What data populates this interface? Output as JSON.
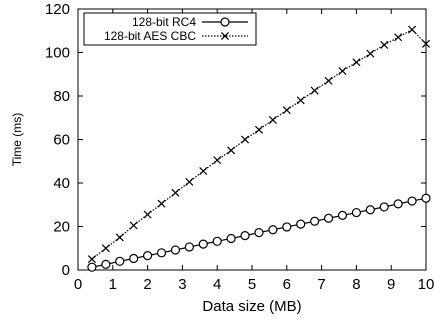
{
  "chart_data": {
    "type": "line",
    "xlabel": "Data size (MB)",
    "ylabel": "Time (ms)",
    "xlim": [
      0,
      10
    ],
    "ylim": [
      0,
      120
    ],
    "x_ticks": [
      0,
      1,
      2,
      3,
      4,
      5,
      6,
      7,
      8,
      9,
      10
    ],
    "y_ticks": [
      0,
      20,
      40,
      60,
      80,
      100,
      120
    ],
    "grid": false,
    "legend_position": "top-left",
    "series": [
      {
        "name": "128-bit RC4",
        "marker": "circle",
        "line_style": "solid",
        "color": "#000000",
        "x": [
          0.4,
          0.8,
          1.2,
          1.6,
          2.0,
          2.4,
          2.8,
          3.2,
          3.6,
          4.0,
          4.4,
          4.8,
          5.2,
          5.6,
          6.0,
          6.4,
          6.8,
          7.2,
          7.6,
          8.0,
          8.4,
          8.8,
          9.2,
          9.6,
          10.0
        ],
        "values": [
          1.3,
          2.6,
          4.0,
          5.3,
          6.6,
          7.9,
          9.2,
          10.6,
          11.9,
          13.2,
          14.5,
          15.8,
          17.2,
          18.5,
          19.8,
          21.1,
          22.4,
          23.8,
          25.1,
          26.4,
          27.7,
          29.0,
          30.4,
          31.7,
          33.0
        ]
      },
      {
        "name": "128-bit AES CBC",
        "marker": "x",
        "line_style": "dotted",
        "color": "#000000",
        "x": [
          0.4,
          0.8,
          1.2,
          1.6,
          2.0,
          2.4,
          2.8,
          3.2,
          3.6,
          4.0,
          4.4,
          4.8,
          5.2,
          5.6,
          6.0,
          6.4,
          6.8,
          7.2,
          7.6,
          8.0,
          8.4,
          8.8,
          9.2,
          9.6,
          10.0
        ],
        "values": [
          5.0,
          10.0,
          15.0,
          20.5,
          25.5,
          30.5,
          35.5,
          40.5,
          45.5,
          50.5,
          55.0,
          60.0,
          64.5,
          69.0,
          73.5,
          78.0,
          82.5,
          87.0,
          91.5,
          95.5,
          99.5,
          103.5,
          107.0,
          110.5,
          104.0
        ]
      }
    ]
  }
}
